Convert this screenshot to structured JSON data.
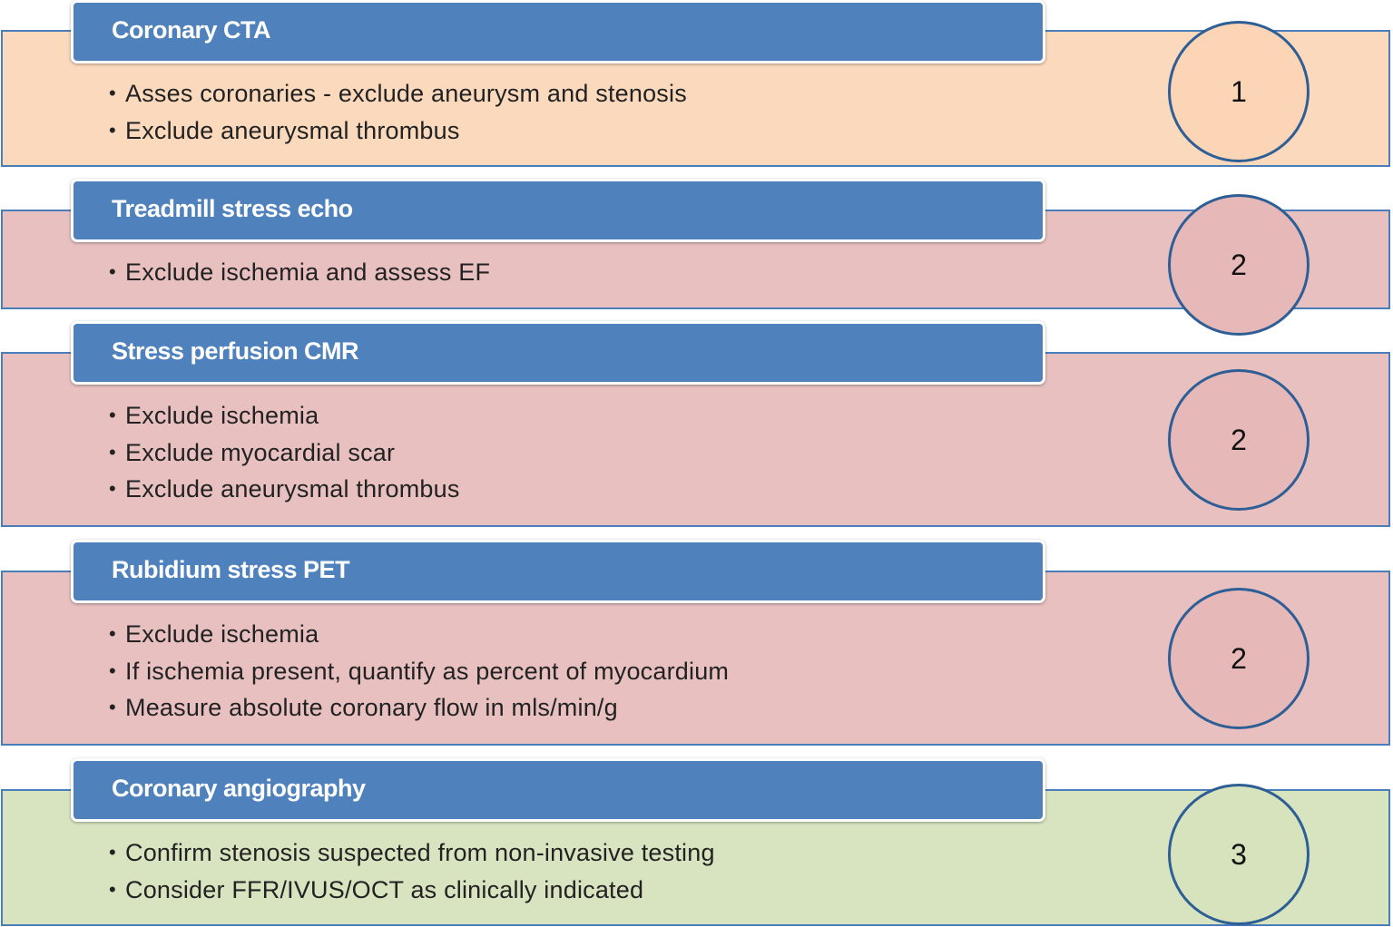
{
  "colors": {
    "header": "#4f81bd",
    "border": "#4a7ebb",
    "circle_border": "#2e5e96",
    "orange": "#fbd9bd",
    "orange_circle": "#fbd5b5",
    "pink": "#e8c0c0",
    "pink_circle": "#e6b9b8",
    "green": "#d8e4c0",
    "green_circle": "#d6e3bc"
  },
  "sections": [
    {
      "title": "Coronary CTA",
      "items": [
        "Asses coronaries - exclude aneurysm and stenosis",
        "Exclude aneurysmal thrombus"
      ],
      "rank": "1"
    },
    {
      "title": "Treadmill stress echo",
      "items": [
        "Exclude ischemia and assess EF"
      ],
      "rank": "2"
    },
    {
      "title": "Stress perfusion CMR",
      "items": [
        "Exclude ischemia",
        "Exclude myocardial scar",
        "Exclude aneurysmal thrombus"
      ],
      "rank": "2"
    },
    {
      "title": "Rubidium stress PET",
      "items": [
        "Exclude ischemia",
        "If ischemia present, quantify as percent of myocardium",
        "Measure absolute coronary flow in mls/min/g"
      ],
      "rank": "2"
    },
    {
      "title": "Coronary angiography",
      "items": [
        "Confirm stenosis suspected from non-invasive testing",
        "Consider FFR/IVUS/OCT as clinically indicated"
      ],
      "rank": "3"
    }
  ]
}
